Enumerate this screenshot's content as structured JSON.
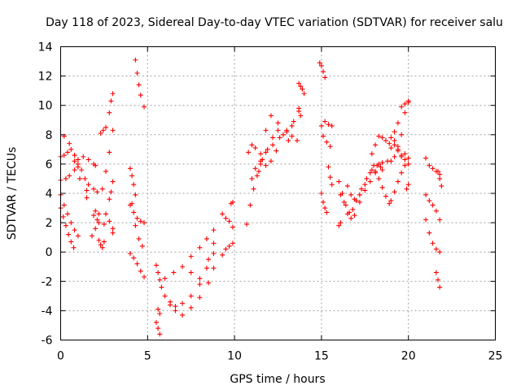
{
  "chart_data": {
    "type": "scatter",
    "title": "Day 118 of 2023, Sidereal Day-to-day VTEC variation (SDTVAR) for receiver salu",
    "xlabel": "GPS time / hours",
    "ylabel": "SDTVAR / TECUs",
    "xlim": [
      0,
      25
    ],
    "ylim": [
      -6,
      14
    ],
    "xticks": [
      0,
      5,
      10,
      15,
      20,
      25
    ],
    "yticks": [
      -6,
      -4,
      -2,
      0,
      2,
      4,
      6,
      8,
      10,
      12,
      14
    ],
    "xtick_labels": [
      "0",
      "5",
      "10",
      "15",
      "20",
      "25"
    ],
    "ytick_labels": [
      "-6",
      "-4",
      "-2",
      "0",
      "2",
      "4",
      "6",
      "8",
      "10",
      "12",
      "14"
    ],
    "grid": true,
    "marker": "plus",
    "color": "#ff0000",
    "tracks": [
      {
        "name": "t1",
        "x": [
          0.0,
          0.3,
          0.5,
          0.8,
          1.0,
          1.3,
          1.6,
          1.9,
          2.0
        ],
        "y": [
          4.9,
          5.0,
          5.2,
          5.6,
          6.0,
          6.5,
          6.3,
          6.0,
          5.9
        ]
      },
      {
        "name": "t2",
        "x": [
          0.0,
          0.2,
          0.4,
          0.6,
          0.8,
          1.0,
          1.5,
          2.0,
          2.5,
          3.0
        ],
        "y": [
          6.5,
          6.6,
          6.8,
          7.0,
          6.6,
          5.8,
          4.2,
          2.8,
          1.9,
          1.3
        ]
      },
      {
        "name": "t3",
        "x": [
          0.2,
          0.5,
          0.8,
          1.1,
          1.5,
          1.9,
          2.2
        ],
        "y": [
          7.9,
          7.4,
          6.2,
          5.0,
          3.7,
          2.5,
          2.0
        ]
      },
      {
        "name": "t4",
        "x": [
          0.0,
          0.2,
          0.4,
          0.6,
          0.8,
          1.0
        ],
        "y": [
          3.9,
          3.2,
          2.6,
          2.0,
          1.5,
          1.1
        ]
      },
      {
        "name": "t5",
        "x": [
          0.0,
          0.15,
          0.3,
          0.45,
          0.6,
          0.75
        ],
        "y": [
          3.0,
          2.4,
          1.8,
          1.2,
          0.7,
          0.3
        ]
      },
      {
        "name": "t6",
        "x": [
          0.8,
          1.0,
          1.2,
          1.4,
          1.6,
          1.9,
          2.1
        ],
        "y": [
          6.6,
          6.3,
          5.6,
          5.0,
          4.6,
          4.3,
          4.1
        ]
      },
      {
        "name": "t7",
        "x": [
          1.8,
          2.0,
          2.1,
          2.2
        ],
        "y": [
          1.1,
          1.6,
          2.2,
          2.6
        ]
      },
      {
        "name": "t8",
        "x": [
          2.2,
          2.3,
          2.4,
          2.5
        ],
        "y": [
          0.8,
          0.5,
          0.3,
          0.7
        ]
      },
      {
        "name": "t9",
        "x": [
          2.3,
          2.45,
          2.6
        ],
        "y": [
          8.1,
          8.3,
          8.5
        ]
      },
      {
        "name": "t10",
        "x": [
          2.4,
          2.6,
          2.8,
          3.0
        ],
        "y": [
          4.3,
          5.5,
          6.8,
          8.3
        ]
      },
      {
        "name": "t11",
        "x": [
          2.8,
          2.9,
          3.0
        ],
        "y": [
          9.5,
          10.3,
          10.8
        ]
      },
      {
        "name": "t12",
        "x": [
          2.8,
          2.9,
          3.0
        ],
        "y": [
          3.6,
          4.1,
          4.8
        ]
      },
      {
        "name": "t13",
        "x": [
          2.6,
          2.8,
          3.0
        ],
        "y": [
          2.6,
          2.1,
          1.6
        ]
      },
      {
        "name": "t14",
        "x": [
          4.0,
          4.1,
          4.2,
          4.3
        ],
        "y": [
          5.7,
          5.2,
          4.6,
          3.9
        ]
      },
      {
        "name": "t15",
        "x": [
          4.0,
          4.2,
          4.4,
          4.6,
          4.8
        ],
        "y": [
          3.2,
          2.7,
          2.3,
          2.1,
          2.0
        ]
      },
      {
        "name": "t16",
        "x": [
          4.1,
          4.3,
          4.5,
          4.7
        ],
        "y": [
          3.3,
          1.8,
          0.9,
          0.4
        ]
      },
      {
        "name": "t17",
        "x": [
          4.0,
          4.2,
          4.4,
          4.6,
          4.8
        ],
        "y": [
          -0.1,
          -0.4,
          -0.8,
          -1.3,
          -1.7
        ]
      },
      {
        "name": "t18",
        "x": [
          4.3,
          4.4,
          4.5,
          4.6,
          4.8
        ],
        "y": [
          13.1,
          12.2,
          11.4,
          10.7,
          9.9
        ]
      },
      {
        "name": "t19",
        "x": [
          5.5,
          5.6,
          5.7
        ],
        "y": [
          -4.8,
          -5.2,
          -5.6
        ]
      },
      {
        "name": "t20",
        "x": [
          5.6,
          5.7
        ],
        "y": [
          -3.9,
          -4.2
        ]
      },
      {
        "name": "t21",
        "x": [
          5.5,
          5.6,
          5.7,
          5.8
        ],
        "y": [
          -0.9,
          -1.4,
          -1.9,
          -2.4
        ]
      },
      {
        "name": "t22",
        "x": [
          6.0,
          6.5,
          7.0,
          7.5,
          8.0,
          8.4,
          8.8
        ],
        "y": [
          -1.8,
          -1.4,
          -1.0,
          -0.3,
          0.3,
          0.9,
          1.5
        ]
      },
      {
        "name": "t23",
        "x": [
          6.0,
          6.3,
          6.6,
          7.0,
          7.5,
          8.0,
          8.4,
          8.8
        ],
        "y": [
          -3.0,
          -3.6,
          -3.7,
          -3.5,
          -3.0,
          -2.2,
          -1.1,
          -0.1
        ]
      },
      {
        "name": "t24",
        "x": [
          6.3,
          6.6,
          7.0,
          7.5,
          8.0,
          8.5,
          8.8
        ],
        "y": [
          -3.4,
          -4.0,
          -4.3,
          -3.8,
          -3.1,
          -2.1,
          -1.1
        ]
      },
      {
        "name": "t25",
        "x": [
          7.5,
          8.0,
          8.5,
          8.8
        ],
        "y": [
          -1.4,
          -1.8,
          -0.5,
          0.6
        ]
      },
      {
        "name": "t26",
        "x": [
          9.3,
          9.5,
          9.7,
          9.9
        ],
        "y": [
          2.6,
          2.3,
          2.1,
          1.7
        ]
      },
      {
        "name": "t27",
        "x": [
          9.3,
          9.5,
          9.7,
          9.9
        ],
        "y": [
          -0.2,
          0.2,
          0.4,
          0.6
        ]
      },
      {
        "name": "t28",
        "x": [
          9.8,
          9.9
        ],
        "y": [
          3.3,
          3.4
        ]
      },
      {
        "name": "t29",
        "x": [
          10.7,
          10.9,
          11.1,
          11.3,
          11.5,
          11.8,
          12.2,
          12.6,
          13.0,
          13.3
        ],
        "y": [
          1.9,
          3.2,
          4.3,
          5.2,
          6.0,
          6.8,
          7.3,
          7.8,
          8.2,
          8.6
        ]
      },
      {
        "name": "t30",
        "x": [
          10.8,
          11.0,
          11.2,
          11.5,
          11.8,
          12.1,
          12.5,
          13.0,
          13.3,
          13.6
        ],
        "y": [
          6.8,
          7.3,
          7.1,
          6.7,
          8.3,
          9.3,
          8.8,
          8.3,
          7.9,
          7.6
        ]
      },
      {
        "name": "t31",
        "x": [
          11.4,
          11.6,
          11.9,
          12.2,
          12.5,
          12.8,
          13.1,
          13.4,
          13.7
        ],
        "y": [
          5.5,
          6.3,
          7.0,
          7.8,
          8.3,
          8.0,
          7.6,
          8.9,
          9.6
        ]
      },
      {
        "name": "t32",
        "x": [
          11.0,
          11.2,
          11.5,
          11.8,
          12.1,
          12.4
        ],
        "y": [
          5.0,
          5.7,
          6.2,
          5.9,
          6.2,
          6.9
        ]
      },
      {
        "name": "t33",
        "x": [
          13.7,
          13.8,
          13.9,
          14.0
        ],
        "y": [
          11.5,
          11.3,
          11.1,
          10.8
        ]
      },
      {
        "name": "t34",
        "x": [
          13.7,
          13.8
        ],
        "y": [
          9.8,
          9.3
        ]
      },
      {
        "name": "t35",
        "x": [
          14.9,
          15.0,
          15.1,
          15.2
        ],
        "y": [
          12.9,
          12.7,
          12.3,
          11.9
        ]
      },
      {
        "name": "t36",
        "x": [
          15.0,
          15.1,
          15.3,
          15.5
        ],
        "y": [
          8.6,
          7.9,
          7.5,
          7.2
        ]
      },
      {
        "name": "t37",
        "x": [
          15.2,
          15.4,
          15.6
        ],
        "y": [
          8.9,
          8.7,
          8.6
        ]
      },
      {
        "name": "t38",
        "x": [
          15.0,
          15.1,
          15.2,
          15.3
        ],
        "y": [
          4.0,
          3.4,
          3.0,
          2.7
        ]
      },
      {
        "name": "t39",
        "x": [
          15.4,
          15.5,
          15.6
        ],
        "y": [
          5.8,
          5.1,
          4.6
        ]
      },
      {
        "name": "t40",
        "x": [
          16.0,
          16.2,
          16.4,
          16.6,
          16.8,
          17.0,
          17.3,
          17.6,
          17.9,
          18.2,
          18.5,
          18.8
        ],
        "y": [
          4.8,
          4.0,
          3.2,
          2.7,
          2.9,
          3.5,
          4.3,
          5.0,
          5.6,
          5.9,
          6.1,
          6.2
        ]
      },
      {
        "name": "t41",
        "x": [
          16.1,
          16.3,
          16.5,
          16.7,
          16.9,
          17.2,
          17.5,
          17.8,
          18.1,
          18.4
        ],
        "y": [
          3.9,
          3.4,
          2.6,
          2.3,
          2.5,
          3.4,
          4.2,
          4.8,
          5.4,
          5.8
        ]
      },
      {
        "name": "t42",
        "x": [
          16.5,
          16.7,
          16.9,
          17.2,
          17.5,
          17.8,
          18.0,
          18.3,
          18.5
        ],
        "y": [
          4.5,
          3.9,
          3.6,
          3.9,
          4.6,
          5.4,
          5.9,
          6.0,
          5.6
        ]
      },
      {
        "name": "t43",
        "x": [
          17.9,
          18.1,
          18.3,
          18.5,
          18.7,
          18.9
        ],
        "y": [
          6.7,
          7.3,
          7.9,
          7.8,
          7.6,
          7.4
        ]
      },
      {
        "name": "t44",
        "x": [
          18.1,
          18.3,
          18.5,
          18.7,
          18.9
        ],
        "y": [
          5.5,
          5.0,
          4.4,
          3.8,
          3.3
        ]
      },
      {
        "name": "t45",
        "x": [
          16.0,
          16.1
        ],
        "y": [
          1.8,
          2.0
        ]
      },
      {
        "name": "t46",
        "x": [
          19.0,
          19.2,
          19.4,
          19.6,
          19.8,
          20.0
        ],
        "y": [
          7.8,
          7.6,
          7.0,
          6.6,
          6.3,
          6.0
        ]
      },
      {
        "name": "t47",
        "x": [
          19.0,
          19.2,
          19.4,
          19.6,
          19.8,
          20.0
        ],
        "y": [
          7.1,
          7.3,
          6.9,
          6.5,
          6.7,
          6.4
        ]
      },
      {
        "name": "t48",
        "x": [
          19.0,
          19.2,
          19.4,
          19.6,
          19.8,
          20.0
        ],
        "y": [
          6.2,
          6.5,
          7.2,
          8.0,
          9.5,
          10.2
        ]
      },
      {
        "name": "t49",
        "x": [
          19.2,
          19.4,
          19.6,
          19.8,
          20.0
        ],
        "y": [
          8.2,
          8.8,
          9.9,
          10.1,
          10.3
        ]
      },
      {
        "name": "t50",
        "x": [
          19.0,
          19.2,
          19.4,
          19.6,
          19.8
        ],
        "y": [
          3.5,
          4.1,
          4.8,
          5.4,
          5.9
        ]
      },
      {
        "name": "t51",
        "x": [
          19.9,
          20.0
        ],
        "y": [
          4.3,
          4.6
        ]
      },
      {
        "name": "t52",
        "x": [
          21.0,
          21.2,
          21.4,
          21.6,
          21.8
        ],
        "y": [
          6.4,
          5.9,
          5.7,
          5.5,
          5.3
        ]
      },
      {
        "name": "t53",
        "x": [
          21.0,
          21.2,
          21.4,
          21.6,
          21.8
        ],
        "y": [
          3.9,
          3.5,
          3.2,
          2.8,
          2.2
        ]
      },
      {
        "name": "t54",
        "x": [
          21.0,
          21.2,
          21.4,
          21.6,
          21.8
        ],
        "y": [
          2.2,
          1.3,
          0.6,
          0.2,
          0.0
        ]
      },
      {
        "name": "t55",
        "x": [
          21.6,
          21.7,
          21.8
        ],
        "y": [
          -1.4,
          -1.9,
          -2.4
        ]
      },
      {
        "name": "t56",
        "x": [
          21.7,
          21.8,
          21.9
        ],
        "y": [
          5.5,
          5.0,
          4.5
        ]
      }
    ]
  }
}
